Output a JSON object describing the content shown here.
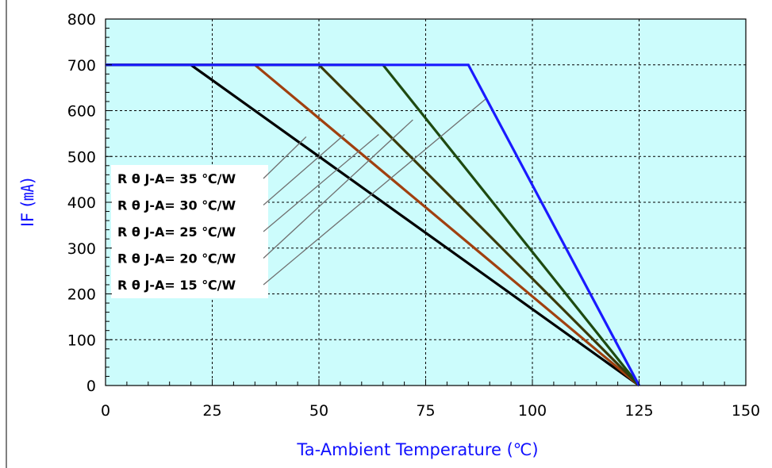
{
  "chart_data": {
    "type": "line",
    "title": "",
    "xlabel": "Ta-Ambient Temperature (℃)",
    "ylabel": "IF (㎃)",
    "xlim": [
      0,
      150
    ],
    "ylim": [
      0,
      800
    ],
    "xticks": [
      0,
      25,
      50,
      75,
      100,
      125,
      150
    ],
    "yticks": [
      0,
      100,
      200,
      300,
      400,
      500,
      600,
      700,
      800
    ],
    "grid": true,
    "legend_placement": "left",
    "series": [
      {
        "name": "R θ J-A= 35 ℃/W",
        "color": "#000000",
        "x": [
          0,
          20,
          125
        ],
        "y": [
          700,
          700,
          0
        ]
      },
      {
        "name": "R θ J-A= 30 ℃/W",
        "color": "#a0400f",
        "x": [
          0,
          35,
          125
        ],
        "y": [
          700,
          700,
          0
        ]
      },
      {
        "name": "R θ J-A= 25 ℃/W",
        "color": "#3a3a0a",
        "x": [
          0,
          50,
          125
        ],
        "y": [
          700,
          700,
          0
        ]
      },
      {
        "name": "R θ J-A= 20 ℃/W",
        "color": "#1e4a10",
        "x": [
          0,
          65,
          125
        ],
        "y": [
          700,
          700,
          0
        ]
      },
      {
        "name": "R θ J-A= 15 ℃/W",
        "color": "#1a1aff",
        "x": [
          0,
          85,
          125
        ],
        "y": [
          700,
          700,
          0
        ]
      }
    ],
    "colors": {
      "plot_background": "#ccfcfc",
      "grid": "#000000",
      "axis_label": "#1010ff"
    }
  }
}
